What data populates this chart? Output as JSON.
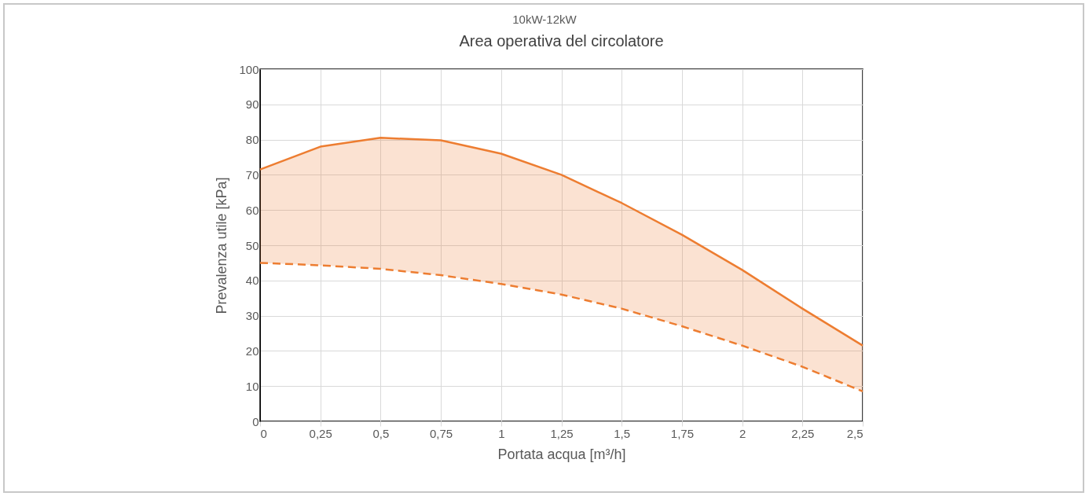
{
  "chart_data": {
    "type": "line",
    "title": "Area operativa del circolatore",
    "subtitle": "10kW-12kW",
    "xlabel": "Portata acqua [m³/h]",
    "ylabel": "Prevalenza utile [kPa]",
    "x": [
      0,
      0.25,
      0.5,
      0.75,
      1,
      1.25,
      1.5,
      1.75,
      2,
      2.25,
      2.5
    ],
    "series": [
      {
        "color": "#ed7d31",
        "line_style": "solid",
        "values": [
          71.5,
          78,
          80.5,
          79.8,
          76,
          70,
          62,
          53,
          43,
          32,
          21.5
        ],
        "lower": [
          45,
          44.3,
          43.3,
          41.5,
          39,
          36,
          32,
          27,
          21.5,
          15.5,
          8.5
        ],
        "upper": [
          71.5,
          78,
          80.5,
          79.8,
          76,
          70,
          62,
          53,
          43,
          32,
          21.5
        ]
      },
      {
        "color": "#ed7d31",
        "line_style": "dashed",
        "values": [
          45,
          44.3,
          43.3,
          41.5,
          39,
          36,
          32,
          27,
          21.5,
          15.5,
          8.5
        ]
      }
    ],
    "xlim": [
      0,
      2.5
    ],
    "xticks": [
      0,
      {
        "value": 0.25,
        "label": "0,25"
      },
      {
        "value": 0.5,
        "label": "0,5"
      },
      {
        "value": 0.75,
        "label": "0,75"
      },
      1,
      {
        "value": 1.25,
        "label": "1,25"
      },
      {
        "value": 1.5,
        "label": "1,5"
      },
      {
        "value": 1.75,
        "label": "1,75"
      },
      2,
      {
        "value": 2.25,
        "label": "2,25"
      },
      {
        "value": 2.5,
        "label": "2,5"
      }
    ],
    "ylim": [
      0,
      100
    ],
    "yticks": [
      0,
      10,
      20,
      30,
      40,
      50,
      60,
      70,
      80,
      90,
      100
    ],
    "grid": true,
    "marker": "none"
  }
}
